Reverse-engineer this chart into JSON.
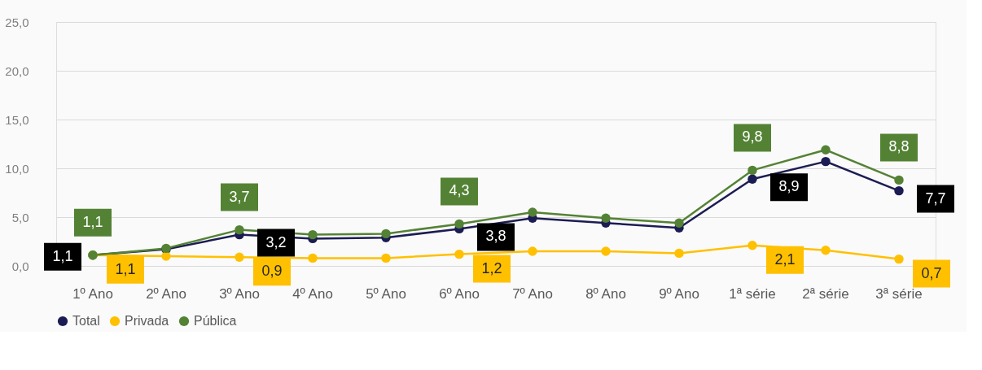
{
  "chart_data": {
    "type": "line",
    "categories": [
      "1º Ano",
      "2º Ano",
      "3º Ano",
      "4º Ano",
      "5º Ano",
      "6º Ano",
      "7º Ano",
      "8º Ano",
      "9º Ano",
      "1ª série",
      "2ª série",
      "3ª série"
    ],
    "series": [
      {
        "name": "Total",
        "color": "#1c1c54",
        "values": [
          1.1,
          1.7,
          3.2,
          2.8,
          2.9,
          3.8,
          4.9,
          4.4,
          3.9,
          8.9,
          10.7,
          7.7
        ],
        "value_labels": [
          "1,1",
          null,
          "3,2",
          null,
          null,
          "3,8",
          null,
          null,
          null,
          "8,9",
          null,
          "7,7"
        ]
      },
      {
        "name": "Privada",
        "color": "#ffc000",
        "values": [
          1.1,
          1.0,
          0.9,
          0.8,
          0.8,
          1.2,
          1.5,
          1.5,
          1.3,
          2.1,
          1.6,
          0.7
        ],
        "value_labels": [
          "1,1",
          null,
          "0,9",
          null,
          null,
          "1,2",
          null,
          null,
          null,
          "2,1",
          null,
          "0,7"
        ]
      },
      {
        "name": "Pública",
        "color": "#548235",
        "values": [
          1.1,
          1.8,
          3.7,
          3.2,
          3.3,
          4.3,
          5.5,
          4.9,
          4.4,
          9.8,
          11.9,
          8.8
        ],
        "value_labels": [
          "1,1",
          null,
          "3,7",
          null,
          null,
          "4,3",
          null,
          null,
          null,
          "9,8",
          null,
          "8,8"
        ]
      }
    ],
    "ylim": [
      0,
      25
    ],
    "yticks": [
      {
        "value": 0,
        "label": "0,0"
      },
      {
        "value": 5,
        "label": "5,0"
      },
      {
        "value": 10,
        "label": "10,0"
      },
      {
        "value": 15,
        "label": "15,0"
      },
      {
        "value": 20,
        "label": "20,0"
      },
      {
        "value": 25,
        "label": "25,0"
      }
    ],
    "grid": "y",
    "legend": "bottom",
    "marker": "circle",
    "line_style": "solid"
  }
}
